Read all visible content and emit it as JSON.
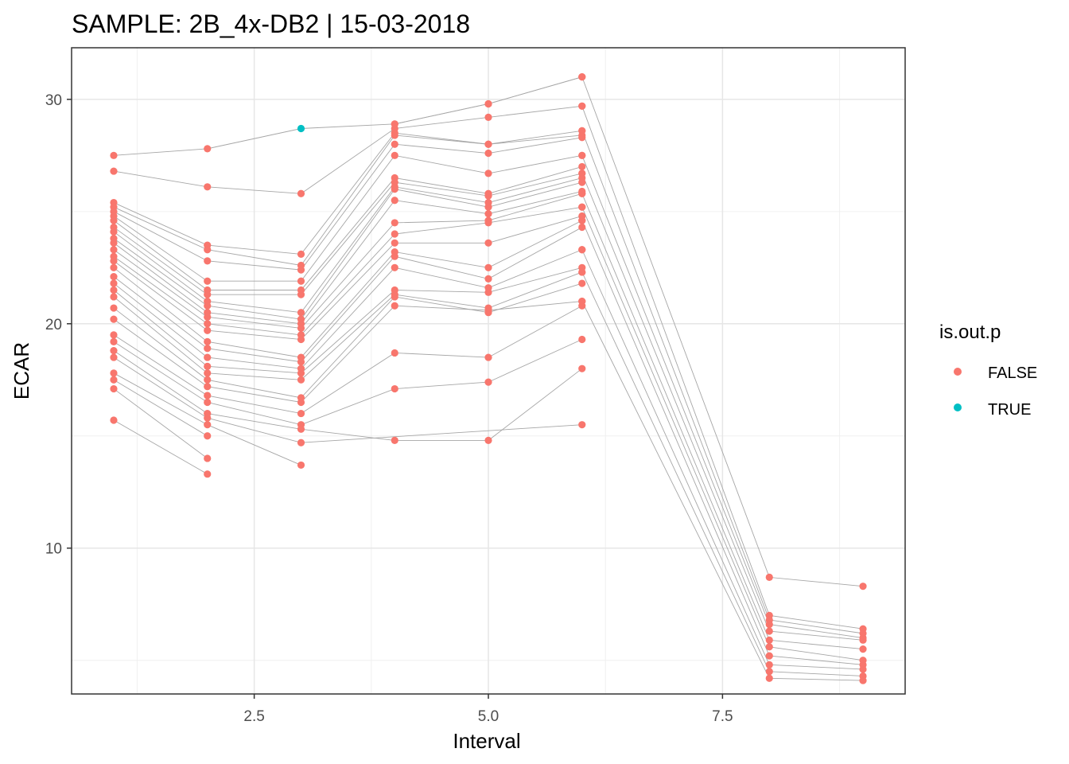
{
  "chart_data": {
    "type": "scatter",
    "title": "SAMPLE:  2B_4x-DB2 | 15-03-2018",
    "xlabel": "Interval",
    "ylabel": "ECAR",
    "xlim": [
      0.55,
      9.45
    ],
    "ylim": [
      3.5,
      32.3
    ],
    "x_ticks": [
      2.5,
      5.0,
      7.5
    ],
    "x_tick_labels": [
      "2.5",
      "5.0",
      "7.5"
    ],
    "y_ticks": [
      10,
      20,
      30
    ],
    "y_tick_labels": [
      "10",
      "20",
      "30"
    ],
    "grid": true,
    "legend": {
      "title": "is.out.p",
      "position": "right",
      "entries": [
        {
          "label": "FALSE",
          "color": "#F8766D"
        },
        {
          "label": "TRUE",
          "color": "#00BFC4"
        }
      ]
    },
    "line_color": "#a6a6a6",
    "x": [
      1,
      2,
      3,
      4,
      5,
      6,
      8,
      9
    ],
    "series": [
      {
        "values": [
          27.5,
          27.8,
          28.7,
          28.9,
          29.8,
          31.0,
          null,
          null
        ],
        "flags": [
          false,
          false,
          true,
          false,
          false,
          false,
          null,
          null
        ]
      },
      {
        "values": [
          26.8,
          26.1,
          25.8,
          28.7,
          29.2,
          29.7,
          null,
          null
        ]
      },
      {
        "values": [
          25.4,
          23.5,
          23.1,
          28.5,
          28.0,
          28.6,
          null,
          null
        ]
      },
      {
        "values": [
          25.2,
          23.3,
          22.6,
          28.4,
          28.0,
          28.4,
          null,
          null
        ]
      },
      {
        "values": [
          25.0,
          22.8,
          22.4,
          28.0,
          27.6,
          28.3,
          null,
          null
        ]
      },
      {
        "values": [
          24.8,
          21.9,
          21.9,
          27.5,
          26.7,
          27.5,
          null,
          null
        ]
      },
      {
        "values": [
          24.6,
          21.5,
          21.5,
          26.5,
          25.8,
          27.0,
          null,
          null
        ]
      },
      {
        "values": [
          24.3,
          21.3,
          21.3,
          26.3,
          25.7,
          26.7,
          null,
          null
        ]
      },
      {
        "values": [
          24.1,
          21.0,
          20.5,
          26.1,
          25.4,
          26.5,
          null,
          null
        ]
      },
      {
        "values": [
          23.8,
          20.8,
          20.2,
          26.0,
          25.2,
          26.3,
          null,
          null
        ]
      },
      {
        "values": [
          23.6,
          20.5,
          20.0,
          25.5,
          24.9,
          25.9,
          null,
          null
        ]
      },
      {
        "values": [
          23.3,
          20.3,
          19.8,
          24.5,
          24.6,
          25.8,
          null,
          null
        ]
      },
      {
        "values": [
          23.0,
          20.0,
          19.5,
          24.0,
          24.5,
          25.2,
          null,
          null
        ]
      },
      {
        "values": [
          22.8,
          19.7,
          19.3,
          23.6,
          23.6,
          24.8,
          null,
          null
        ]
      },
      {
        "values": [
          22.5,
          19.2,
          18.5,
          23.2,
          22.5,
          24.6,
          null,
          null
        ]
      },
      {
        "values": [
          22.1,
          18.9,
          18.3,
          23.0,
          22.0,
          24.3,
          null,
          null
        ]
      },
      {
        "values": [
          21.8,
          18.5,
          18.0,
          22.5,
          21.6,
          23.3,
          null,
          null
        ]
      },
      {
        "values": [
          21.5,
          18.1,
          17.8,
          21.5,
          21.4,
          22.5,
          null,
          null
        ]
      },
      {
        "values": [
          21.2,
          17.8,
          17.5,
          21.3,
          20.7,
          22.3,
          null,
          null
        ]
      },
      {
        "values": [
          20.7,
          17.5,
          16.7,
          21.2,
          20.5,
          21.8,
          null,
          null
        ]
      },
      {
        "values": [
          20.2,
          17.2,
          16.5,
          20.8,
          20.6,
          21.0,
          null,
          null
        ]
      },
      {
        "values": [
          19.5,
          16.8,
          16.0,
          18.7,
          18.5,
          20.8,
          null,
          null
        ]
      },
      {
        "values": [
          19.2,
          16.5,
          15.5,
          17.1,
          17.4,
          19.3,
          null,
          null
        ]
      },
      {
        "values": [
          18.8,
          16.0,
          15.3,
          14.8,
          14.8,
          18.0,
          null,
          null
        ]
      },
      {
        "values": [
          18.5,
          15.8,
          14.7,
          null,
          null,
          15.5,
          null,
          null
        ]
      },
      {
        "values": [
          17.8,
          15.5,
          13.7,
          null,
          null,
          null,
          null,
          null
        ]
      },
      {
        "values": [
          17.5,
          15.0,
          null,
          null,
          null,
          null,
          null,
          null
        ]
      },
      {
        "values": [
          17.1,
          14.0,
          null,
          null,
          null,
          null,
          null,
          null
        ]
      },
      {
        "values": [
          15.7,
          13.3,
          null,
          null,
          null,
          null,
          null,
          null
        ]
      },
      {
        "values": [
          null,
          null,
          null,
          28.9,
          29.8,
          31.0,
          8.7,
          8.3
        ]
      },
      {
        "values": [
          null,
          null,
          null,
          null,
          null,
          29.7,
          7.0,
          6.4
        ]
      },
      {
        "values": [
          null,
          null,
          null,
          null,
          null,
          28.6,
          6.8,
          6.2
        ]
      },
      {
        "values": [
          null,
          null,
          null,
          null,
          null,
          27.5,
          6.6,
          6.0
        ]
      },
      {
        "values": [
          null,
          null,
          null,
          null,
          null,
          26.7,
          6.3,
          5.9
        ]
      },
      {
        "values": [
          null,
          null,
          null,
          null,
          null,
          25.8,
          5.9,
          5.5
        ]
      },
      {
        "values": [
          null,
          null,
          null,
          null,
          null,
          25.2,
          5.6,
          5.0
        ]
      },
      {
        "values": [
          null,
          null,
          null,
          null,
          null,
          24.6,
          5.2,
          4.8
        ]
      },
      {
        "values": [
          null,
          null,
          null,
          null,
          null,
          23.3,
          4.8,
          4.6
        ]
      },
      {
        "values": [
          null,
          null,
          null,
          null,
          null,
          22.3,
          4.5,
          4.3
        ]
      },
      {
        "values": [
          null,
          null,
          null,
          null,
          null,
          21.0,
          4.2,
          4.1
        ]
      }
    ]
  }
}
